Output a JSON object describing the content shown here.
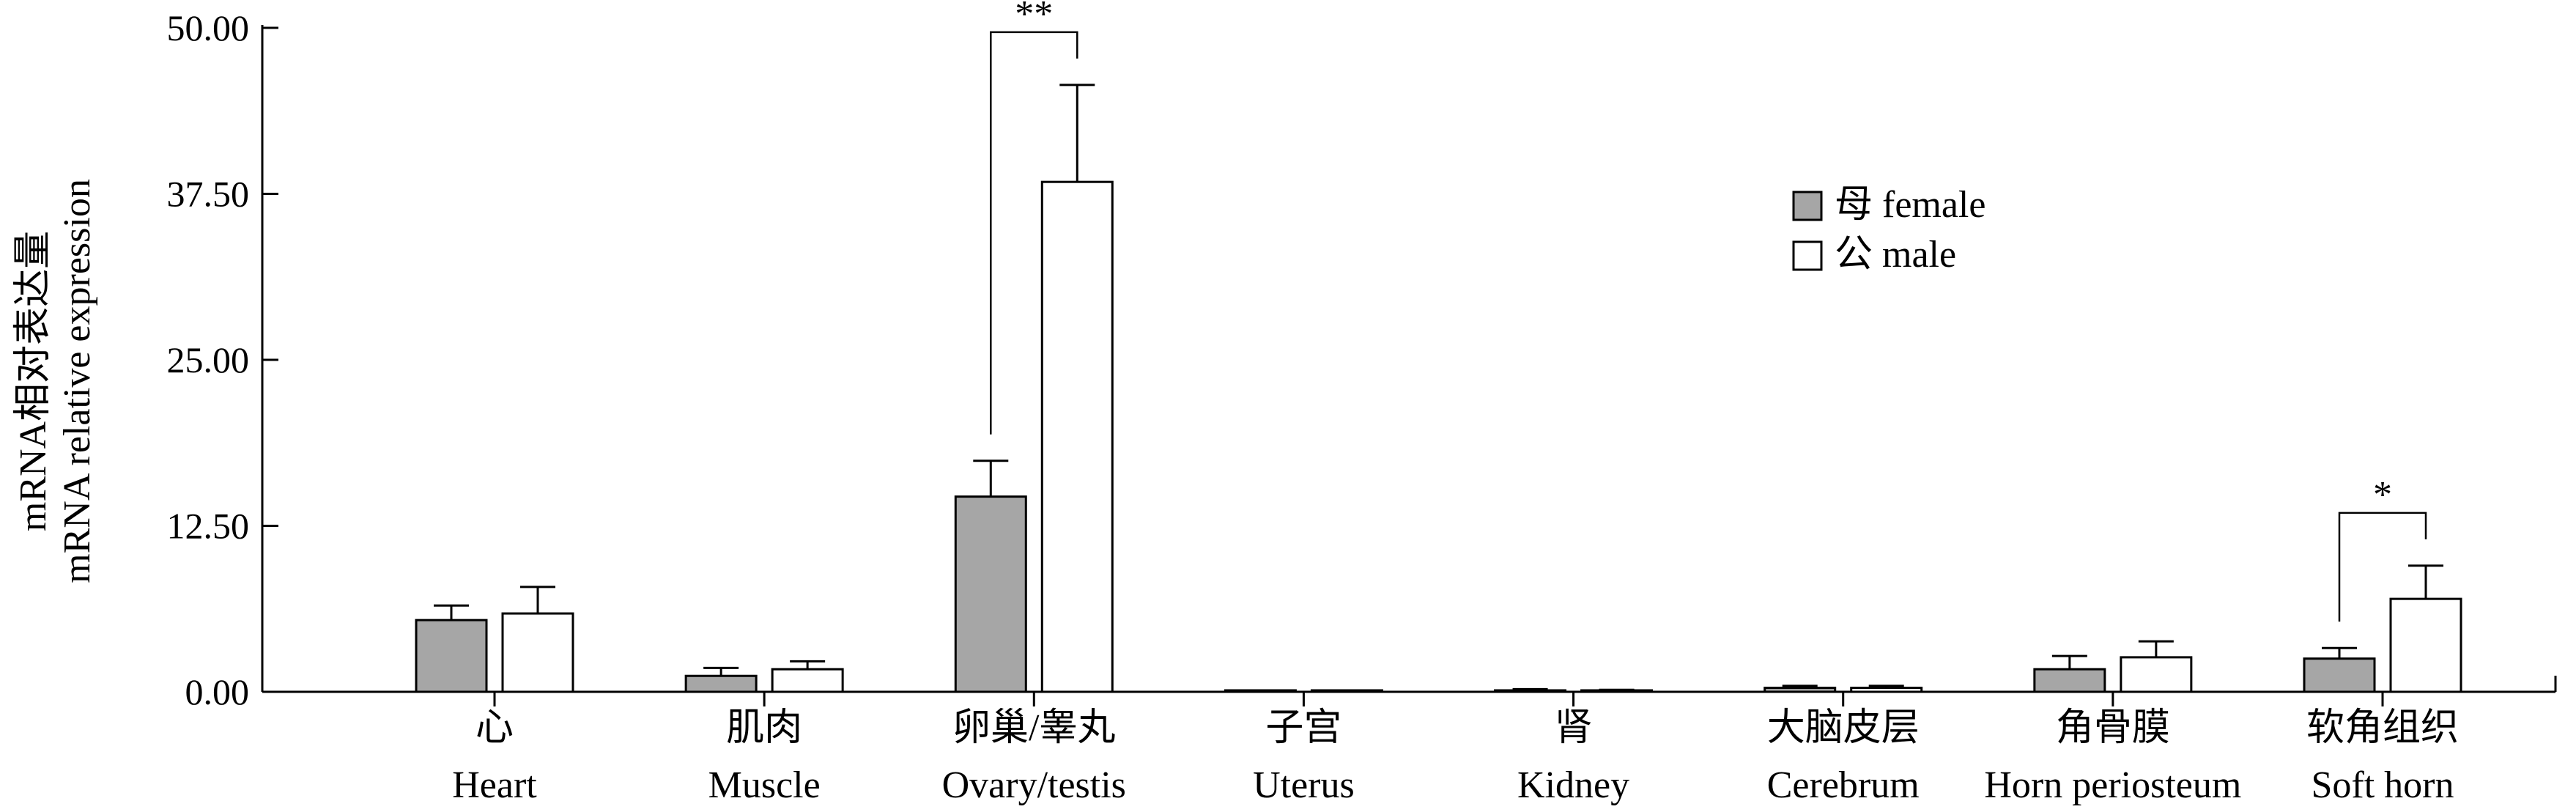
{
  "chart_data": {
    "type": "bar",
    "ylabel_lines": [
      "mRNA相对表达量",
      "mRNA relative expression"
    ],
    "ylim": [
      0,
      50
    ],
    "yticks": [
      {
        "value": 0,
        "label": "0.00"
      },
      {
        "value": 12.5,
        "label": "12.50"
      },
      {
        "value": 25,
        "label": "25.00"
      },
      {
        "value": 37.5,
        "label": "37.50"
      },
      {
        "value": 50,
        "label": "50.00"
      }
    ],
    "categories": [
      {
        "zh": "心",
        "en": "Heart"
      },
      {
        "zh": "肌肉",
        "en": "Muscle"
      },
      {
        "zh": "卵巢/睾丸",
        "en": "Ovary/testis"
      },
      {
        "zh": "子宫",
        "en": "Uterus"
      },
      {
        "zh": "肾",
        "en": "Kidney"
      },
      {
        "zh": "大脑皮层",
        "en": "Cerebrum"
      },
      {
        "zh": "角骨膜",
        "en": "Horn periosteum"
      },
      {
        "zh": "软角组织",
        "en": "Soft horn"
      }
    ],
    "series": [
      {
        "name": "母 female",
        "color": "#a6a6a6",
        "values": [
          5.4,
          1.2,
          14.7,
          0.05,
          0.1,
          0.3,
          1.7,
          2.5
        ],
        "errors": [
          1.1,
          0.6,
          2.7,
          0.05,
          0.1,
          0.15,
          1.0,
          0.8
        ]
      },
      {
        "name": "公 male",
        "color": "#ffffff",
        "values": [
          5.9,
          1.7,
          38.4,
          0.05,
          0.1,
          0.3,
          2.6,
          7.0
        ],
        "errors": [
          2.0,
          0.6,
          7.3,
          0.05,
          0.05,
          0.15,
          1.2,
          2.5
        ]
      }
    ],
    "significance": [
      {
        "category_index": 2,
        "label": "**"
      },
      {
        "category_index": 7,
        "label": "*"
      }
    ],
    "legend_position": "upper-right-center",
    "grid": false
  }
}
